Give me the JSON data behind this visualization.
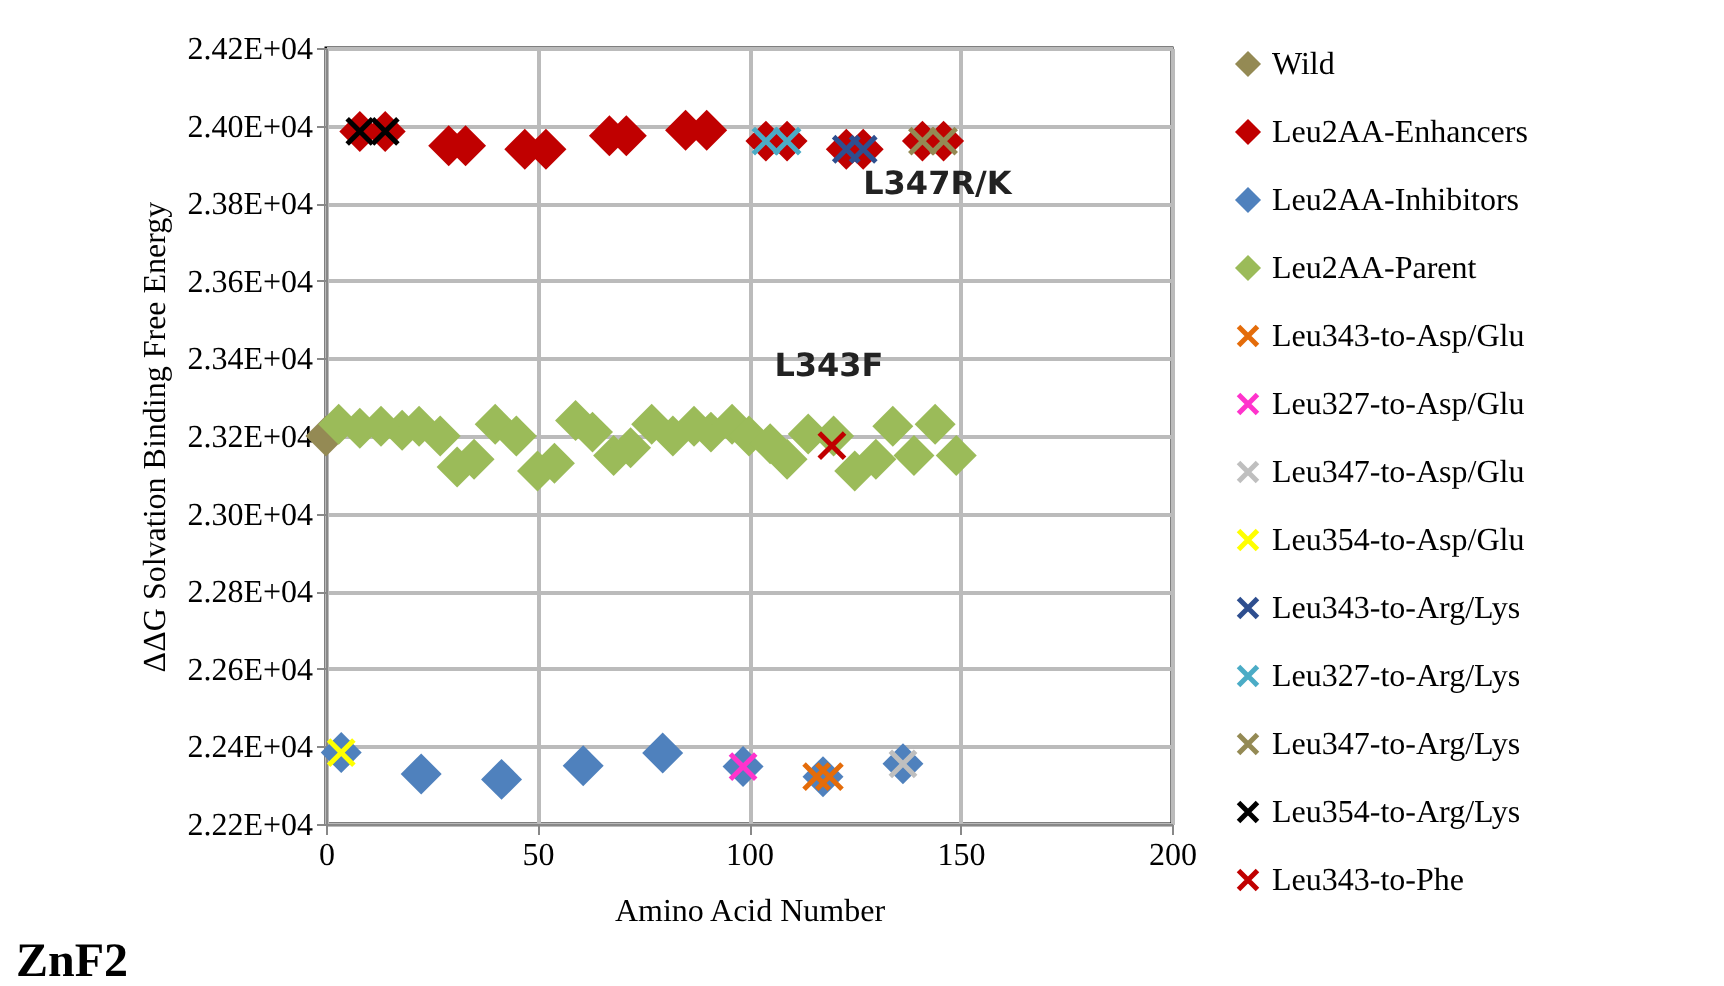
{
  "chart_data": {
    "type": "scatter",
    "title": "ZnF2",
    "xlabel": "Amino  Acid Number",
    "ylabel": "ΔΔG Solvation Binding Free Energy",
    "xlim": [
      0,
      200
    ],
    "xticks": [
      0,
      50,
      100,
      150,
      200
    ],
    "ylim": [
      22200,
      24200
    ],
    "yticks": [
      {
        "value": 22200,
        "label": "2.22E+04"
      },
      {
        "value": 22400,
        "label": "2.24E+04"
      },
      {
        "value": 22600,
        "label": "2.26E+04"
      },
      {
        "value": 22800,
        "label": "2.28E+04"
      },
      {
        "value": 23000,
        "label": "2.30E+04"
      },
      {
        "value": 23200,
        "label": "2.32E+04"
      },
      {
        "value": 23400,
        "label": "2.34E+04"
      },
      {
        "value": 23600,
        "label": "2.36E+04"
      },
      {
        "value": 23800,
        "label": "2.38E+04"
      },
      {
        "value": 24000,
        "label": "2.40E+04"
      },
      {
        "value": 24200,
        "label": "2.42E+04"
      }
    ],
    "grid": true,
    "legend": "right",
    "annotations": [
      "L347R/K",
      "L343F"
    ],
    "series": [
      {
        "name": "Wild",
        "color": "#948a54",
        "marker": "diamond",
        "x": [
          0
        ],
        "values": [
          23200
        ]
      },
      {
        "name": "Leu2AA-Enhancers",
        "color": "#c00000",
        "marker": "diamond",
        "x": [
          8,
          14,
          29,
          33,
          47,
          52,
          67,
          71,
          85,
          90,
          104,
          109,
          123,
          127,
          141,
          146
        ],
        "values": [
          23985,
          23985,
          23948,
          23948,
          23939,
          23939,
          23974,
          23974,
          23988,
          23988,
          23960,
          23960,
          23939,
          23939,
          23960,
          23960
        ]
      },
      {
        "name": "Leu2AA-Inhibitors",
        "color": "#4f81bd",
        "marker": "diamond",
        "x": [
          3.6,
          22.5,
          41.5,
          60.8,
          79.6,
          98.6,
          117.5,
          136.4
        ],
        "values": [
          22384,
          22329,
          22315,
          22350,
          22383,
          22348,
          22322,
          22355
        ]
      },
      {
        "name": "Leu2AA-Parent",
        "color": "#9bbb59",
        "marker": "diamond",
        "x": [
          3,
          8,
          13,
          18,
          22,
          27,
          31,
          35,
          40,
          45,
          50,
          54,
          59,
          63,
          68,
          72,
          77,
          82,
          87,
          91,
          96,
          100,
          105,
          109,
          114,
          120,
          125,
          130,
          134,
          139,
          144,
          149
        ],
        "values": [
          23230,
          23220,
          23225,
          23215,
          23225,
          23200,
          23120,
          23140,
          23230,
          23200,
          23110,
          23130,
          23240,
          23210,
          23150,
          23170,
          23230,
          23200,
          23225,
          23210,
          23230,
          23200,
          23180,
          23140,
          23205,
          23200,
          23110,
          23140,
          23225,
          23150,
          23230,
          23150
        ]
      },
      {
        "name": "Leu343-to-Asp/Glu",
        "color": "#e46c0a",
        "marker": "cross",
        "x": [
          116,
          119
        ],
        "values": [
          22322,
          22322
        ]
      },
      {
        "name": "Leu327-to-Asp/Glu",
        "color": "#ff33cc",
        "marker": "cross",
        "x": [
          98.6
        ],
        "values": [
          22348
        ]
      },
      {
        "name": "Leu347-to-Asp/Glu",
        "color": "#bfbfbf",
        "marker": "cross",
        "x": [
          136.4
        ],
        "values": [
          22355
        ]
      },
      {
        "name": "Leu354-to-Asp/Glu",
        "color": "#ffff00",
        "marker": "cross",
        "x": [
          3.6
        ],
        "values": [
          22384
        ]
      },
      {
        "name": "Leu343-to-Arg/Lys",
        "color": "#2e4e8f",
        "marker": "cross",
        "x": [
          123,
          127
        ],
        "values": [
          23939,
          23939
        ]
      },
      {
        "name": "Leu327-to-Arg/Lys",
        "color": "#4bacc6",
        "marker": "cross",
        "x": [
          104,
          109
        ],
        "values": [
          23960,
          23960
        ]
      },
      {
        "name": "Leu347-to-Arg/Lys",
        "color": "#948a54",
        "marker": "cross",
        "x": [
          141,
          146
        ],
        "values": [
          23960,
          23960
        ]
      },
      {
        "name": "Leu354-to-Arg/Lys",
        "color": "#000000",
        "marker": "cross",
        "x": [
          8,
          14
        ],
        "values": [
          23985,
          23985
        ]
      },
      {
        "name": "Leu343-to-Phe",
        "color": "#c00000",
        "marker": "cross",
        "x": [
          119.6
        ],
        "values": [
          23175
        ]
      }
    ]
  }
}
